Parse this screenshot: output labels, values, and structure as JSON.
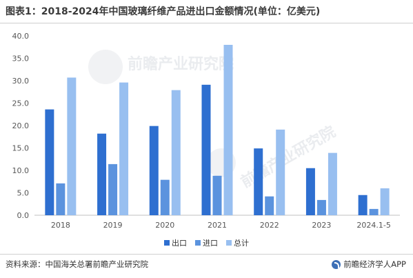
{
  "title": "图表1：2018-2024年中国玻璃纤维产品进出口金额情况(单位：亿美元)",
  "source": "资料来源：中国海关总署前瞻产业研究院",
  "brand": "前瞻经济学人APP",
  "watermark": "前瞻产业研究院",
  "colors": {
    "export": "#2e6fd0",
    "import": "#5b93de",
    "total": "#98bff0"
  },
  "legend": [
    "出口",
    "进口",
    "总计"
  ],
  "chart_data": {
    "type": "bar",
    "categories": [
      "2018",
      "2019",
      "2020",
      "2021",
      "2022",
      "2023",
      "2024.1-5"
    ],
    "series": [
      {
        "name": "出口",
        "values": [
          23.6,
          18.2,
          19.9,
          29.1,
          14.9,
          10.5,
          4.5
        ]
      },
      {
        "name": "进口",
        "values": [
          7.1,
          11.4,
          7.9,
          8.8,
          4.2,
          3.4,
          1.4
        ]
      },
      {
        "name": "总计",
        "values": [
          30.7,
          29.6,
          27.9,
          38.0,
          19.1,
          13.9,
          6.0
        ]
      }
    ],
    "ylim": [
      0,
      40
    ],
    "yticks": [
      "0.0",
      "5.0",
      "10.0",
      "15.0",
      "20.0",
      "25.0",
      "30.0",
      "35.0",
      "40.0"
    ],
    "grid": false,
    "legend_position": "bottom"
  }
}
